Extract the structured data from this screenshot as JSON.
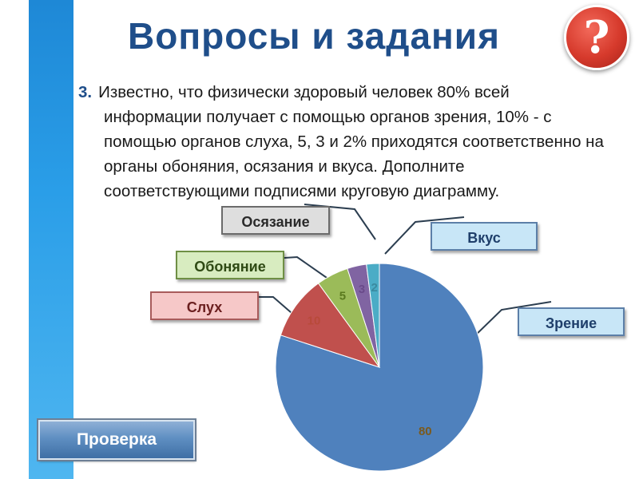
{
  "header": {
    "title": "Вопросы и задания",
    "help_icon": "question-mark-icon",
    "help_symbol": "?"
  },
  "task": {
    "number": "3.",
    "line1": "Известно, что физически здоровый человек 80% всей",
    "rest": "информации получает с помощью органов зрения, 10% - с помощью органов слуха, 5, 3 и 2% приходятся соответственно на органы обоняния, осязания и вкуса. Дополните соответствующими подписями круговую диаграмму."
  },
  "labels": {
    "vision": "Зрение",
    "hearing": "Слух",
    "smell": "Обоняние",
    "touch": "Осязание",
    "taste": "Вкус"
  },
  "check_button": {
    "label": "Проверка"
  },
  "chart_data": {
    "type": "pie",
    "title": "",
    "values": [
      80,
      10,
      5,
      3,
      2
    ],
    "data_labels": [
      "80",
      "10",
      "5",
      "3",
      "2"
    ],
    "colors": [
      "#4f81bd",
      "#c0504d",
      "#9bbb59",
      "#8064a2",
      "#4bacc6"
    ],
    "label_colors": [
      "#7a5a1e",
      "#b84a3a",
      "#5a7a1e",
      "#6a4a8a",
      "#3a8aa0"
    ],
    "start_angle_deg": 0,
    "direction": "clockwise"
  }
}
